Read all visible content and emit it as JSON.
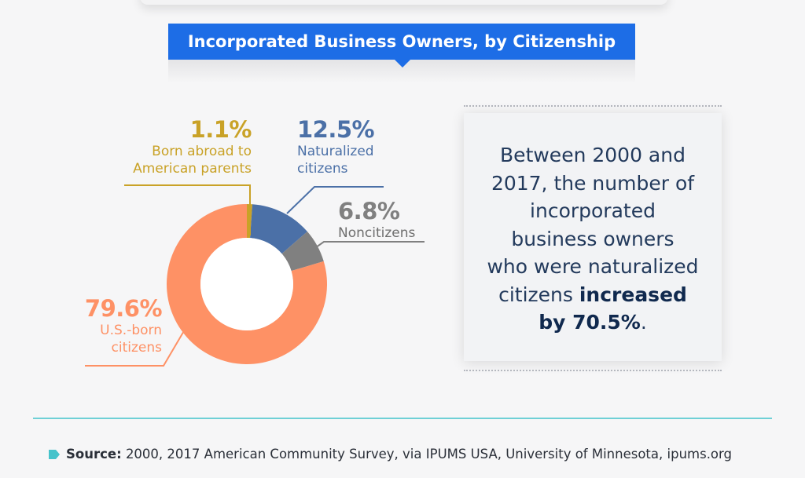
{
  "header": {
    "title": "Incorporated Business Owners, by Citizenship"
  },
  "chart_data": {
    "type": "pie",
    "title": "Incorporated Business Owners, by Citizenship",
    "slices": [
      {
        "key": "born_abroad",
        "value": 1.1,
        "pct_label": "1.1%",
        "caption_lines": [
          "Born abroad to",
          "American parents"
        ],
        "color": "#c9a227"
      },
      {
        "key": "naturalized",
        "value": 12.5,
        "pct_label": "12.5%",
        "caption_lines": [
          "Naturalized",
          "citizens"
        ],
        "color": "#4b70a7"
      },
      {
        "key": "noncitizens",
        "value": 6.8,
        "pct_label": "6.8%",
        "caption_lines": [
          "Noncitizens"
        ],
        "color": "#808080"
      },
      {
        "key": "us_born",
        "value": 79.6,
        "pct_label": "79.6%",
        "caption_lines": [
          "U.S.-born",
          "citizens"
        ],
        "color": "#fe9165"
      }
    ]
  },
  "callout": {
    "lines": [
      {
        "text": "Between 2000 and"
      },
      {
        "text": "2017, the number of"
      },
      {
        "text": "incorporated"
      },
      {
        "text": "business owners"
      },
      {
        "text": "who were naturalized"
      },
      {
        "text": "citizens ",
        "bold": "increased"
      },
      {
        "bold": "by 70.5%",
        "text": "."
      }
    ]
  },
  "footer": {
    "source_label": "Source:",
    "source_text": "2000, 2017 American Community Survey, via IPUMS USA, University of Minnesota, ipums.org"
  },
  "colors": {
    "accent": "#1d6de6",
    "divider": "#6fd0d6",
    "navy": "#10294e"
  }
}
